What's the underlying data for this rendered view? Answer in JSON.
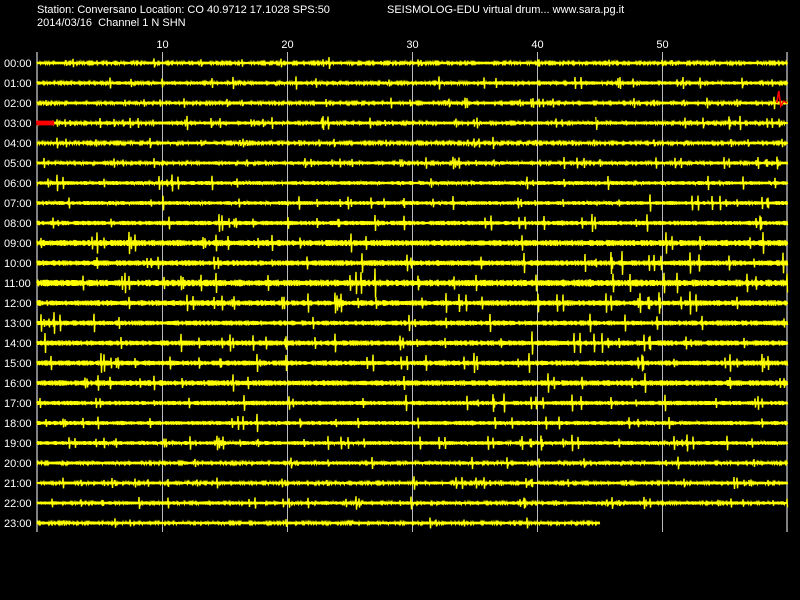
{
  "header": {
    "station_line": "Station: Conversano Location: CO 40.9712 17.1028 SPS:50",
    "date_line": "2014/03/16  Channel 1 N SHN",
    "title_right": "SEISMOLOG-EDU virtual drum... www.sara.pg.it"
  },
  "colors": {
    "background": "#000000",
    "trace": "#ffff00",
    "event": "#ff0000",
    "grid": "#ffffff",
    "text": "#ffffff"
  },
  "chart_data": {
    "type": "line",
    "x_unit": "minutes",
    "xlim": [
      0,
      60
    ],
    "x_ticks": [
      10,
      20,
      30,
      40,
      50
    ],
    "x_tick_labels": [
      "10",
      "20",
      "30",
      "40",
      "50"
    ],
    "grid": true,
    "rows": [
      {
        "hour": "00:00",
        "end_minute": 60,
        "noise": 1.0
      },
      {
        "hour": "01:00",
        "end_minute": 60,
        "noise": 1.2
      },
      {
        "hour": "02:00",
        "end_minute": 60,
        "noise": 1.1,
        "event_minute": 59.5
      },
      {
        "hour": "03:00",
        "end_minute": 60,
        "noise": 1.2,
        "event_start_minute": 0,
        "event_end_minute": 1.3,
        "spike_minute": 44.7
      },
      {
        "hour": "04:00",
        "end_minute": 60,
        "noise": 1.0
      },
      {
        "hour": "05:00",
        "end_minute": 60,
        "noise": 1.2
      },
      {
        "hour": "06:00",
        "end_minute": 60,
        "noise": 1.4
      },
      {
        "hour": "07:00",
        "end_minute": 60,
        "noise": 1.4
      },
      {
        "hour": "08:00",
        "end_minute": 60,
        "noise": 1.6
      },
      {
        "hour": "09:00",
        "end_minute": 60,
        "noise": 2.2
      },
      {
        "hour": "10:00",
        "end_minute": 60,
        "noise": 2.0
      },
      {
        "hour": "11:00",
        "end_minute": 60,
        "noise": 2.4
      },
      {
        "hour": "12:00",
        "end_minute": 60,
        "noise": 2.0
      },
      {
        "hour": "13:00",
        "end_minute": 60,
        "noise": 1.8
      },
      {
        "hour": "14:00",
        "end_minute": 60,
        "noise": 1.9
      },
      {
        "hour": "15:00",
        "end_minute": 60,
        "noise": 1.8
      },
      {
        "hour": "16:00",
        "end_minute": 60,
        "noise": 2.0
      },
      {
        "hour": "17:00",
        "end_minute": 60,
        "noise": 1.6
      },
      {
        "hour": "18:00",
        "end_minute": 60,
        "noise": 1.5
      },
      {
        "hour": "19:00",
        "end_minute": 60,
        "noise": 1.4
      },
      {
        "hour": "20:00",
        "end_minute": 60,
        "noise": 1.2
      },
      {
        "hour": "21:00",
        "end_minute": 60,
        "noise": 1.1
      },
      {
        "hour": "22:00",
        "end_minute": 60,
        "noise": 1.2
      },
      {
        "hour": "23:00",
        "end_minute": 45,
        "noise": 1.1
      }
    ]
  }
}
